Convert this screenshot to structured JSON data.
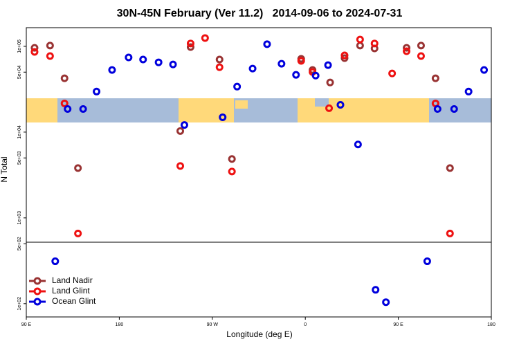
{
  "chart_data": {
    "type": "scatter",
    "title": "30N-45N February (Ver 11.2)   2014-09-06 to 2024-07-31",
    "x_label": "Longitude (deg E)",
    "y_label": "N Total",
    "log_y": true,
    "legend": "bottom-left",
    "xlim": [
      -270,
      180
    ],
    "xticks": [
      {
        "value": -270,
        "label": "90 E"
      },
      {
        "value": -180,
        "label": "180"
      },
      {
        "value": -90,
        "label": "90 W"
      },
      0,
      {
        "value": 90,
        "label": "90 E"
      },
      {
        "value": 180,
        "label": "180"
      }
    ],
    "ylim": [
      70,
      165000
    ],
    "yticks": [
      {
        "value": 100000,
        "label": "1e+05"
      },
      {
        "value": 50000,
        "label": "5e+04"
      },
      {
        "value": 10000,
        "label": "1e+04"
      },
      {
        "value": 5000,
        "label": "5e+03"
      },
      {
        "value": 1000,
        "label": "1e+03"
      },
      {
        "value": 500,
        "label": "5e+02"
      },
      {
        "value": 100,
        "label": "1e+02"
      }
    ],
    "series": [
      {
        "name": "Land Nadir",
        "color": "#993333",
        "x": [
          -262,
          -247,
          -233,
          -220,
          -121,
          -111,
          -83,
          -71,
          -4,
          7,
          24,
          38,
          53,
          67,
          98,
          112,
          126,
          140
        ],
        "values": [
          96000,
          102000,
          42400,
          3810,
          10300,
          98000,
          70200,
          4860,
          71500,
          53000,
          37900,
          72900,
          102000,
          94500,
          96000,
          102000,
          42400,
          3810
        ]
      },
      {
        "name": "Land Glint",
        "color": "#ee1111",
        "x": [
          -262,
          -247,
          -233,
          -220,
          -121,
          -111,
          -97,
          -83,
          -71,
          -4,
          7,
          23,
          38,
          53,
          67,
          84,
          98,
          112,
          126,
          140
        ],
        "values": [
          86100,
          77000,
          21600,
          658,
          4030,
          108000,
          125000,
          57100,
          3470,
          67600,
          50100,
          19000,
          78400,
          120000,
          108000,
          48300,
          87700,
          77000,
          21600,
          658
        ]
      },
      {
        "name": "Ocean Glint",
        "color": "#0000dd",
        "x": [
          -242,
          -230,
          -215,
          -202,
          -187,
          -171,
          -157,
          -142,
          -128,
          -117,
          -80,
          -66,
          -51,
          -37,
          -23,
          -9,
          10,
          22,
          34,
          51,
          68,
          78,
          118,
          128,
          144,
          158,
          173
        ],
        "values": [
          312,
          18600,
          18600,
          29700,
          53000,
          74200,
          70200,
          65100,
          61500,
          12100,
          14900,
          33900,
          55000,
          106000,
          62700,
          46500,
          45600,
          60400,
          20800,
          7180,
          145,
          104,
          312,
          18600,
          18600,
          29700,
          53000
        ]
      }
    ]
  }
}
